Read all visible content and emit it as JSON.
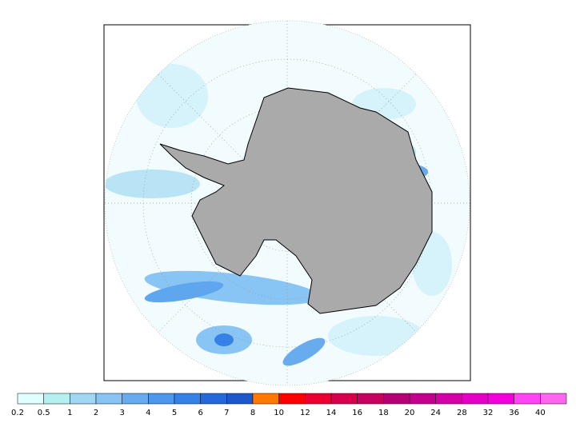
{
  "colorbar": {
    "levels": [
      0.2,
      0.5,
      1,
      2,
      3,
      4,
      5,
      6,
      7,
      8,
      10,
      12,
      14,
      16,
      18,
      20,
      24,
      28,
      32,
      36,
      40
    ],
    "colors": [
      "#e0ffff",
      "#b4f0f0",
      "#a0d8f4",
      "#88c4f4",
      "#68acf0",
      "#4c98ec",
      "#3482e6",
      "#2468dc",
      "#1c58cc",
      "#ff7800",
      "#ff0000",
      "#ec0032",
      "#d8004e",
      "#c80060",
      "#b40074",
      "#c4008c",
      "#d400a8",
      "#e400c4",
      "#f400dc",
      "#ff44f4",
      "#ff66f0"
    ]
  }
}
